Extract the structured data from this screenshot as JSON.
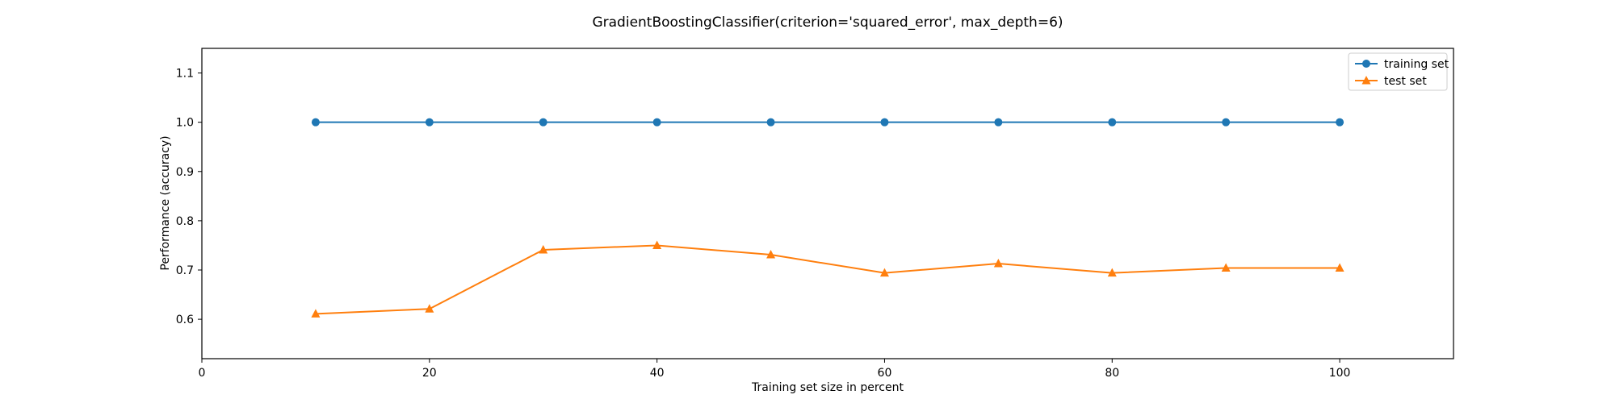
{
  "chart_data": {
    "type": "line",
    "title": "GradientBoostingClassifier(criterion='squared_error', max_depth=6)",
    "xlabel": "Training set size in percent",
    "ylabel": "Performance (accuracy)",
    "xlim": [
      0,
      110
    ],
    "ylim": [
      0.52,
      1.15
    ],
    "xticks": [
      0,
      20,
      40,
      60,
      80,
      100
    ],
    "yticks": [
      0.6,
      0.7,
      0.8,
      0.9,
      1.0,
      1.1
    ],
    "ytick_labels": [
      "0.6",
      "0.7",
      "0.8",
      "0.9",
      "1.0",
      "1.1"
    ],
    "grid": false,
    "legend_position": "top-right",
    "x": [
      10,
      20,
      30,
      40,
      50,
      60,
      70,
      80,
      90,
      100
    ],
    "series": [
      {
        "name": "training set",
        "color": "#1f77b4",
        "marker": "circle",
        "values": [
          1.0,
          1.0,
          1.0,
          1.0,
          1.0,
          1.0,
          1.0,
          1.0,
          1.0,
          1.0
        ]
      },
      {
        "name": "test set",
        "color": "#ff7f0e",
        "marker": "triangle",
        "values": [
          0.611,
          0.621,
          0.741,
          0.75,
          0.731,
          0.694,
          0.713,
          0.694,
          0.704,
          0.704
        ]
      }
    ]
  }
}
